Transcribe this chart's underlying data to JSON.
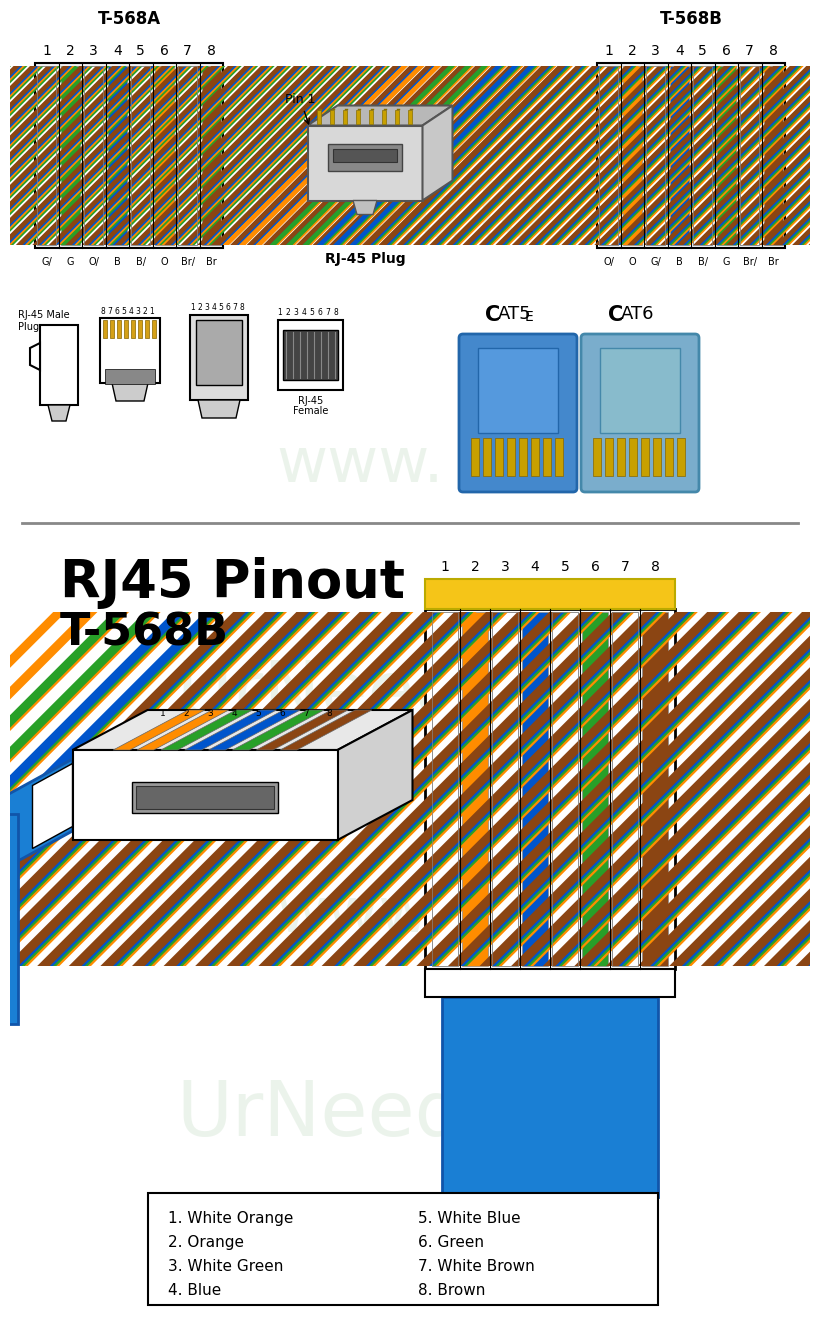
{
  "bg_color": "#ffffff",
  "t568a_label": "T-568A",
  "t568b_label": "T-568B",
  "pin_numbers": [
    "1",
    "2",
    "3",
    "4",
    "5",
    "6",
    "7",
    "8"
  ],
  "t568a_wire_colors": [
    {
      "main": "#ffffff",
      "stripe": "#28a028"
    },
    {
      "main": "#28a028",
      "stripe": null
    },
    {
      "main": "#ffffff",
      "stripe": "#ff8c00"
    },
    {
      "main": "#0055cc",
      "stripe": null
    },
    {
      "main": "#ffffff",
      "stripe": "#0055cc"
    },
    {
      "main": "#ff8c00",
      "stripe": null
    },
    {
      "main": "#ffffff",
      "stripe": "#8b4513"
    },
    {
      "main": "#8b4513",
      "stripe": null
    }
  ],
  "t568a_labels": [
    "G/",
    "G",
    "O/",
    "B",
    "B/",
    "O",
    "Br/",
    "Br"
  ],
  "t568b_wire_colors": [
    {
      "main": "#ffffff",
      "stripe": "#ff8c00"
    },
    {
      "main": "#ff8c00",
      "stripe": null
    },
    {
      "main": "#ffffff",
      "stripe": "#28a028"
    },
    {
      "main": "#0055cc",
      "stripe": null
    },
    {
      "main": "#ffffff",
      "stripe": "#0055cc"
    },
    {
      "main": "#28a028",
      "stripe": null
    },
    {
      "main": "#ffffff",
      "stripe": "#8b4513"
    },
    {
      "main": "#8b4513",
      "stripe": null
    }
  ],
  "t568b_labels": [
    "O/",
    "O",
    "G/",
    "B",
    "B/",
    "G",
    "Br/",
    "Br"
  ],
  "pinout_b_wire_colors": [
    {
      "main": "#ffffff",
      "stripe": "#ff8c00"
    },
    {
      "main": "#ff8c00",
      "stripe": null
    },
    {
      "main": "#ffffff",
      "stripe": "#28a028"
    },
    {
      "main": "#0055cc",
      "stripe": null
    },
    {
      "main": "#ffffff",
      "stripe": "#0055cc"
    },
    {
      "main": "#28a028",
      "stripe": null
    },
    {
      "main": "#ffffff",
      "stripe": "#8b4513"
    },
    {
      "main": "#8b4513",
      "stripe": null
    }
  ],
  "legend_items_col1": [
    "1. White Orange",
    "2. Orange",
    "3. White Green",
    "4. Blue"
  ],
  "legend_items_col2": [
    "5. White Blue",
    "6. Green",
    "7. White Brown",
    "8. Brown"
  ],
  "cable_blue": "#1a7fd4",
  "gold_color": "#f5c518",
  "top_bar_color": "#f5c518",
  "watermark_color": "#c8dfc8"
}
